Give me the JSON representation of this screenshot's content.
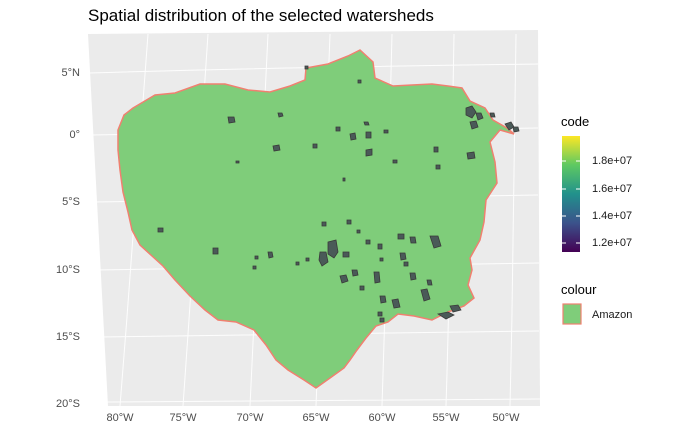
{
  "title": "Spatial distribution of the selected watersheds",
  "map": {
    "panel_background": "#ebebeb",
    "grid_color": "#ffffff",
    "region_fill": "#7fcd7a",
    "region_outline": "#f08070",
    "watershed_stroke": "#3a3a3a",
    "watershed_fill": "#4a5a58",
    "lat_labels": [
      "5°N",
      "0°",
      "5°S",
      "10°S",
      "15°S",
      "20°S"
    ],
    "lon_labels": [
      "80°W",
      "75°W",
      "70°W",
      "65°W",
      "60°W",
      "55°W",
      "50°W"
    ]
  },
  "legend": {
    "code": {
      "title": "code",
      "ticks": [
        "1.8e+07",
        "1.6e+07",
        "1.4e+07",
        "1.2e+07"
      ],
      "gradient": [
        "#fde725",
        "#5ec962",
        "#21918c",
        "#3b528b",
        "#440154"
      ]
    },
    "colour": {
      "title": "colour",
      "label": "Amazon",
      "swatch_fill": "#7fcd7a",
      "swatch_outline": "#f08070"
    }
  }
}
